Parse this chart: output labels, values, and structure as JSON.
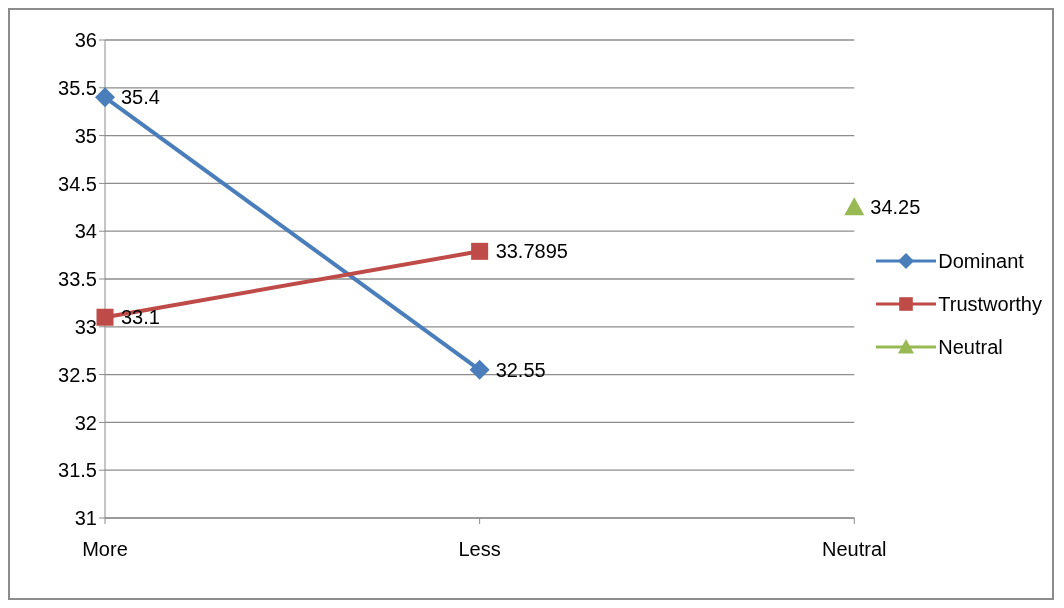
{
  "chart_data": {
    "type": "line",
    "categories": [
      "More",
      "Less",
      "Neutral"
    ],
    "series": [
      {
        "name": "Dominant",
        "color": "#4a7ebb",
        "marker": "diamond",
        "values": [
          35.4,
          32.55,
          null
        ]
      },
      {
        "name": "Trustworthy",
        "color": "#be4b48",
        "marker": "square",
        "values": [
          33.1,
          33.7895,
          null
        ]
      },
      {
        "name": "Neutral",
        "color": "#98b954",
        "marker": "triangle",
        "values": [
          null,
          null,
          34.25
        ]
      }
    ],
    "ylim": [
      31,
      36
    ],
    "yticks": [
      31,
      31.5,
      32,
      32.5,
      33,
      33.5,
      34,
      34.5,
      35,
      35.5,
      36
    ],
    "grid": "y",
    "legend": "right",
    "data_labels": true
  }
}
